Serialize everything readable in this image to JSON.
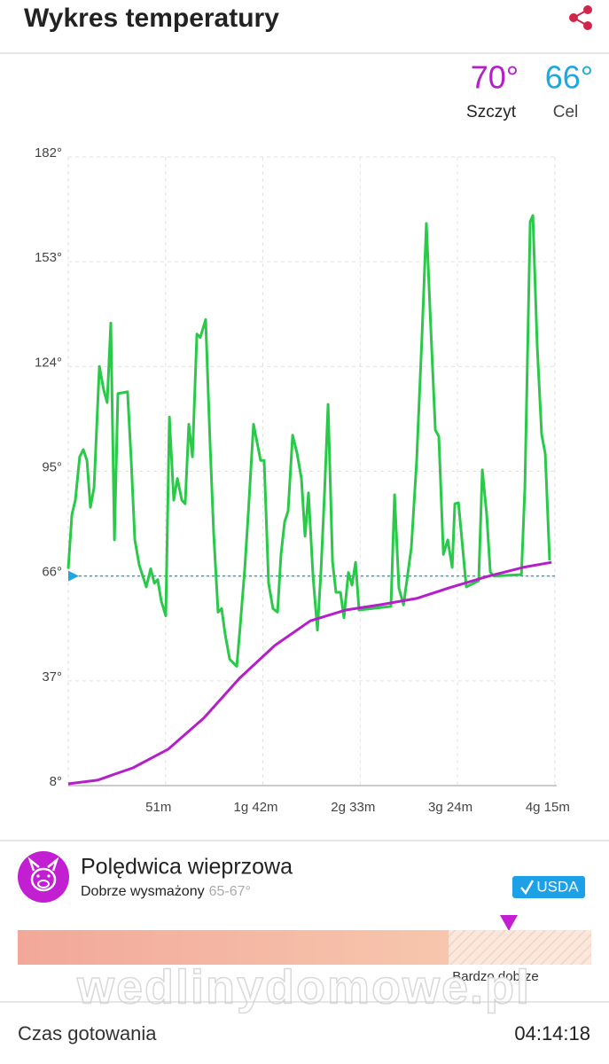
{
  "header": {
    "title": "Wykres temperatury"
  },
  "stats": [
    {
      "value": "70°",
      "label": "Szczyt",
      "color": "#b51fc9"
    },
    {
      "value": "66°",
      "label": "Cel",
      "color": "#1fa8e0"
    }
  ],
  "chart_data": {
    "type": "line",
    "xlim": [
      0,
      256
    ],
    "ylim": [
      8,
      182
    ],
    "xticks": [
      {
        "value": 51,
        "label": "51m"
      },
      {
        "value": 102,
        "label": "1g 42m"
      },
      {
        "value": 153,
        "label": "2g 33m"
      },
      {
        "value": 204,
        "label": "3g 24m"
      },
      {
        "value": 255,
        "label": "4g 15m"
      }
    ],
    "yticks": [
      {
        "value": 8,
        "label": "8°"
      },
      {
        "value": 37,
        "label": "37°"
      },
      {
        "value": 66,
        "label": "66°"
      },
      {
        "value": 95,
        "label": "95°"
      },
      {
        "value": 124,
        "label": "124°"
      },
      {
        "value": 153,
        "label": "153°"
      },
      {
        "value": 182,
        "label": "182°"
      }
    ],
    "grid": true,
    "target_line": {
      "value": 66,
      "color": "#1fa8e0"
    },
    "series": [
      {
        "color": "#2bc94a",
        "x": [
          0,
          1.9,
          3.7,
          6,
          7.9,
          9.8,
          11.6,
          13.5,
          16.3,
          18.6,
          20.4,
          22.3,
          24.2,
          26,
          31.1,
          33,
          34.9,
          37.2,
          40.9,
          43.2,
          45.1,
          46.9,
          48.8,
          51.1,
          53,
          55.3,
          57.2,
          59.5,
          61.3,
          63.2,
          65.1,
          67.4,
          69.2,
          72,
          74.3,
          76.2,
          78.5,
          80.4,
          82.2,
          84.6,
          86.4,
          88.3,
          90.1,
          92.5,
          94.3,
          97.1,
          100.8,
          102.7,
          105,
          107.3,
          109.7,
          111.5,
          113.4,
          115.2,
          117.6,
          119.9,
          122.2,
          124.1,
          125.9,
          128.3,
          130.6,
          132.4,
          134.3,
          136.2,
          138.5,
          140.3,
          142.7,
          144.5,
          146.8,
          148.7,
          150.6,
          152.4,
          169.1,
          171,
          173.3,
          175.7,
          179.8,
          182.6,
          185.4,
          187.7,
          190.1,
          192.4,
          194.2,
          196.6,
          198.9,
          201.2,
          202.6,
          204.5,
          206.3,
          208.6,
          215.1,
          217,
          219.3,
          221.2,
          223,
          237.5,
          239.3,
          242.1,
          243.5,
          245.8,
          248.1,
          250,
          252.3
        ],
        "values": [
          68,
          83,
          87,
          99,
          101,
          98,
          85,
          90.5,
          124,
          117.5,
          114,
          136,
          76,
          116.5,
          117,
          98,
          76,
          69,
          63,
          68,
          64,
          65,
          59,
          55,
          110,
          87,
          93,
          87,
          86,
          108,
          99,
          133,
          132,
          137,
          103,
          78,
          56,
          57,
          50,
          43,
          42,
          41,
          52,
          68,
          83,
          108,
          98,
          98,
          64,
          57,
          56,
          72,
          81,
          84,
          105,
          100,
          93,
          77,
          89,
          66,
          51,
          67,
          89,
          113.5,
          70,
          61.5,
          61.5,
          54.4,
          67,
          63.5,
          69.8,
          56.6,
          57.6,
          88.5,
          62.7,
          58,
          73.8,
          97.8,
          132.2,
          163.6,
          133.4,
          106.4,
          104.7,
          72,
          76,
          68.4,
          86,
          86.3,
          76.2,
          63,
          64.7,
          95.4,
          83.1,
          67.1,
          66,
          66.4,
          90.5,
          164.1,
          165.8,
          129.7,
          105.2,
          99.8,
          70.3
        ]
      },
      {
        "color": "#b51fc9",
        "x": [
          0,
          15.3,
          33.9,
          52.5,
          71.1,
          89.7,
          108.3,
          126.9,
          145.4,
          164,
          182.6,
          201.2,
          219.8,
          238.4,
          253.3
        ],
        "values": [
          8.5,
          9.5,
          12.9,
          18.1,
          26.7,
          37.7,
          46.8,
          53.6,
          56.6,
          58.1,
          59.8,
          63,
          65.9,
          68.4,
          69.8
        ]
      }
    ]
  },
  "product": {
    "name": "Polędwica wieprzowa",
    "doneness": "Dobrze wysmażony",
    "range": "65-67°",
    "badge": "USDA",
    "zone_label": "Bardzo dobrze"
  },
  "watermark": "wedlinydomowe.pl",
  "footer": {
    "label": "Czas gotowania",
    "time": "04:14:18"
  }
}
